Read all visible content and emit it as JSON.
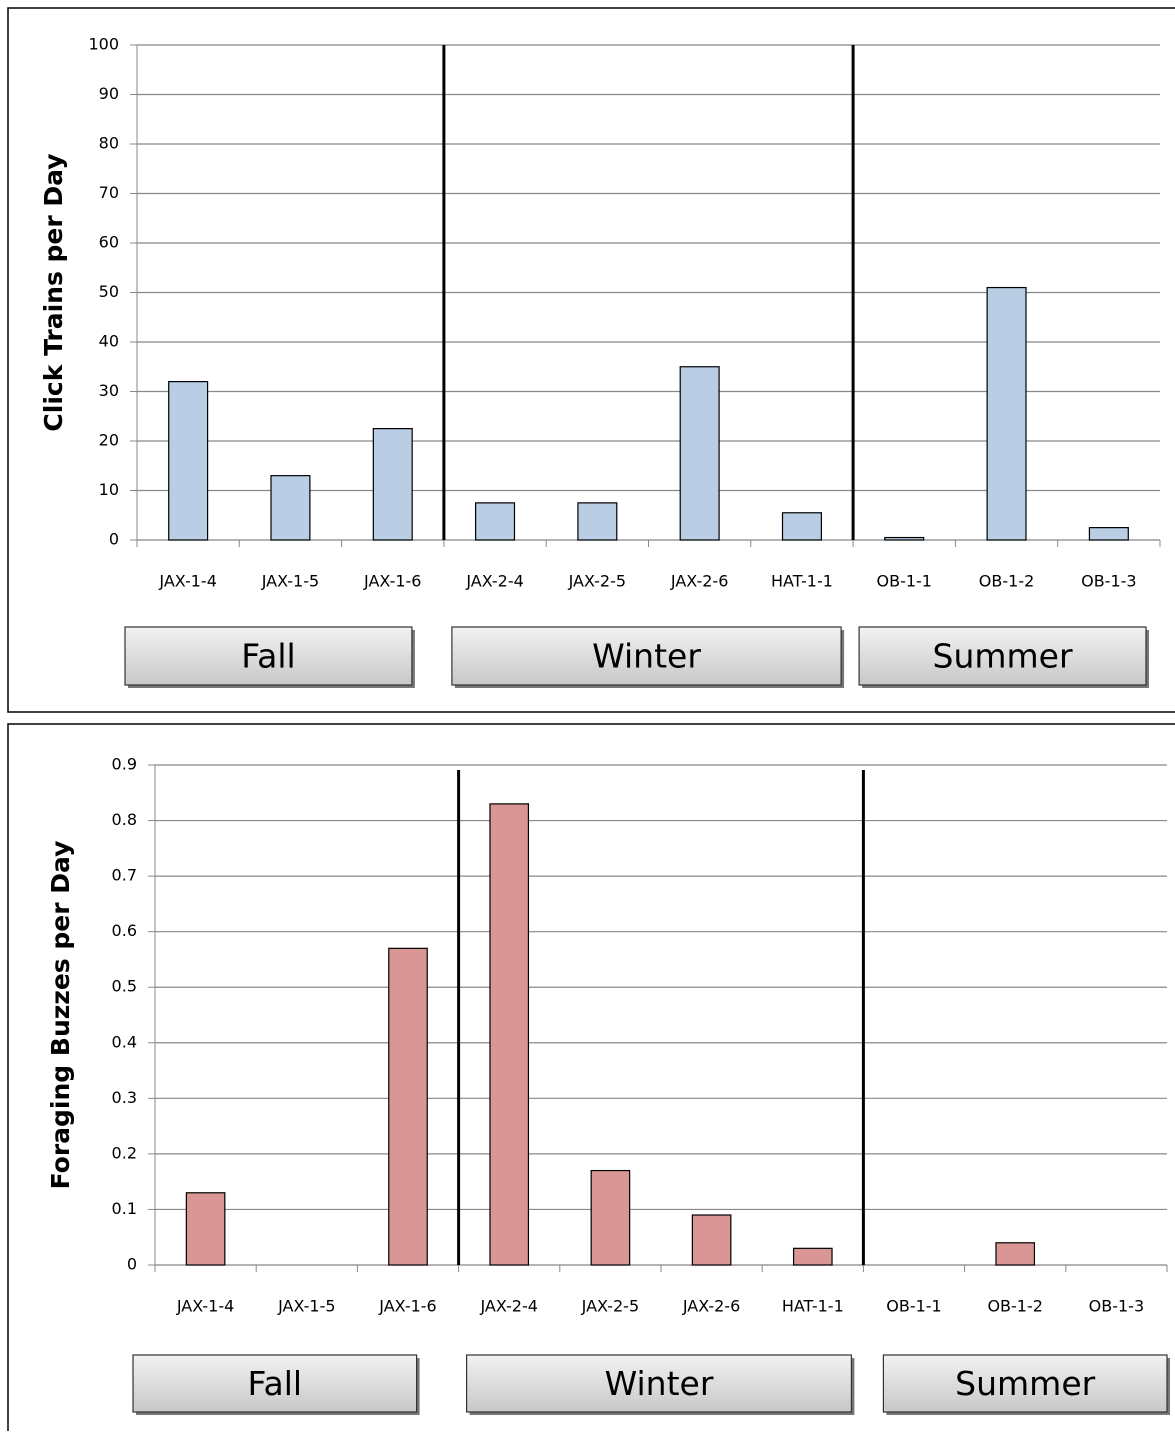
{
  "chart_data": [
    {
      "type": "bar",
      "y_label": "Click Trains per Day",
      "categories": [
        "JAX-1-4",
        "JAX-1-5",
        "JAX-1-6",
        "JAX-2-4",
        "JAX-2-5",
        "JAX-2-6",
        "HAT-1-1",
        "OB-1-1",
        "OB-1-2",
        "OB-1-3"
      ],
      "values": [
        32,
        13,
        22.5,
        7.5,
        7.5,
        35,
        5.5,
        0.5,
        51,
        2.5
      ],
      "color": "#b9cde5",
      "ylim": [
        0,
        100
      ],
      "yticks": [
        0,
        10,
        20,
        30,
        40,
        50,
        60,
        70,
        80,
        90,
        100
      ],
      "grid": true,
      "groups": [
        {
          "label": "Fall",
          "span": 3
        },
        {
          "label": "Winter",
          "span": 4
        },
        {
          "label": "Summer",
          "span": 3
        }
      ]
    },
    {
      "type": "bar",
      "y_label": "Foraging Buzzes per Day",
      "categories": [
        "JAX-1-4",
        "JAX-1-5",
        "JAX-1-6",
        "JAX-2-4",
        "JAX-2-5",
        "JAX-2-6",
        "HAT-1-1",
        "OB-1-1",
        "OB-1-2",
        "OB-1-3"
      ],
      "values": [
        0.13,
        0,
        0.57,
        0.83,
        0.17,
        0.09,
        0.03,
        0,
        0.04,
        0
      ],
      "color": "#d99694",
      "ylim": [
        0,
        0.9
      ],
      "yticks": [
        0,
        0.1,
        0.2,
        0.3,
        0.4,
        0.5,
        0.6,
        0.7,
        0.8,
        0.9
      ],
      "grid": true,
      "groups": [
        {
          "label": "Fall",
          "span": 3
        },
        {
          "label": "Winter",
          "span": 4
        },
        {
          "label": "Summer",
          "span": 3
        }
      ]
    }
  ]
}
